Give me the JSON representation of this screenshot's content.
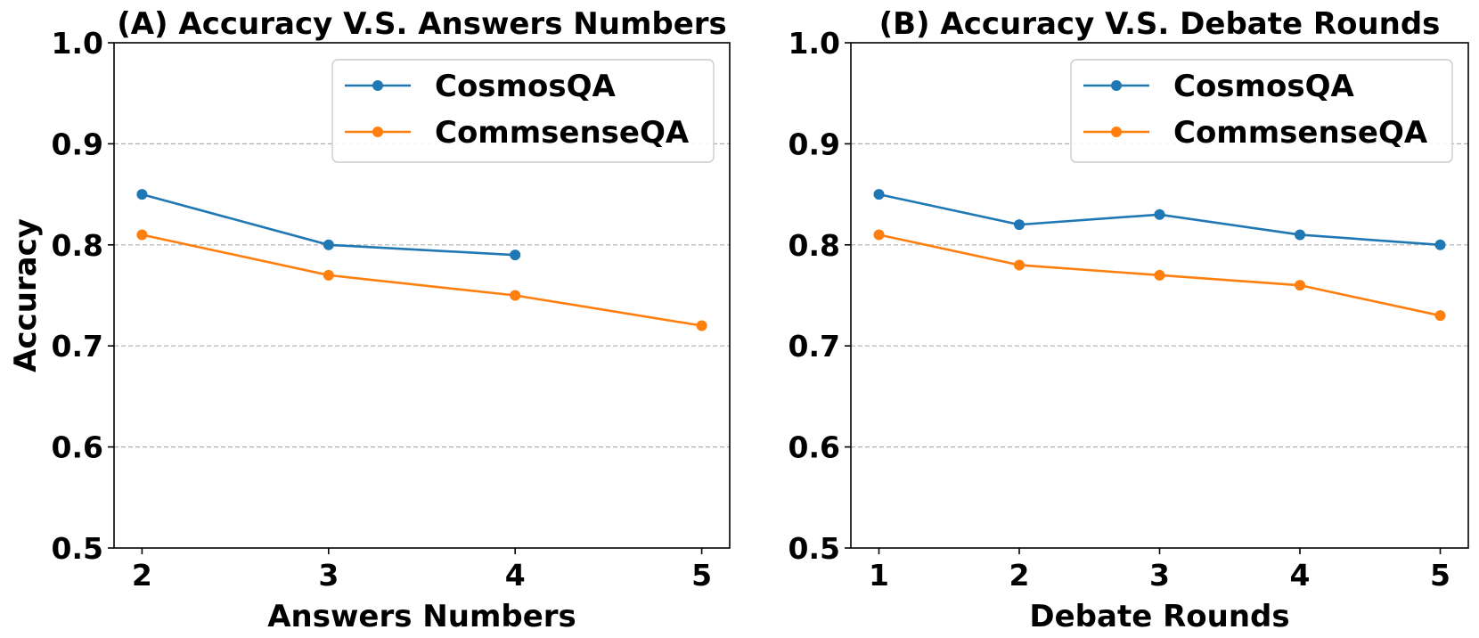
{
  "chart_data": [
    {
      "type": "line",
      "title": "(A) Accuracy V.S. Answers Numbers",
      "xlabel": "Answers Numbers",
      "ylabel": "Accuracy",
      "ylim": [
        0.5,
        1.0
      ],
      "xlim": [
        1.85,
        5.15
      ],
      "xticks": [
        2,
        3,
        4,
        5
      ],
      "yticks": [
        0.5,
        0.6,
        0.7,
        0.8,
        0.9,
        1.0
      ],
      "ytick_labels": [
        "0.5",
        "0.6",
        "0.7",
        "0.8",
        "0.9",
        "1.0"
      ],
      "grid": "horizontal dashed",
      "legend_position": "upper right",
      "series": [
        {
          "name": "CosmosQA",
          "color": "#1f77b4",
          "x": [
            2,
            3,
            4
          ],
          "values": [
            0.85,
            0.8,
            0.79
          ]
        },
        {
          "name": "CommsenseQA",
          "color": "#ff7f0e",
          "x": [
            2,
            3,
            4,
            5
          ],
          "values": [
            0.81,
            0.77,
            0.75,
            0.72
          ]
        }
      ]
    },
    {
      "type": "line",
      "title": "(B) Accuracy V.S. Debate Rounds",
      "xlabel": "Debate Rounds",
      "ylabel": "",
      "ylim": [
        0.5,
        1.0
      ],
      "xlim": [
        0.8,
        5.2
      ],
      "xticks": [
        1,
        2,
        3,
        4,
        5
      ],
      "yticks": [
        0.5,
        0.6,
        0.7,
        0.8,
        0.9,
        1.0
      ],
      "ytick_labels": [
        "0.5",
        "0.6",
        "0.7",
        "0.8",
        "0.9",
        "1.0"
      ],
      "grid": "horizontal dashed",
      "legend_position": "upper right",
      "series": [
        {
          "name": "CosmosQA",
          "color": "#1f77b4",
          "x": [
            1,
            2,
            3,
            4,
            5
          ],
          "values": [
            0.85,
            0.82,
            0.83,
            0.81,
            0.8
          ]
        },
        {
          "name": "CommsenseQA",
          "color": "#ff7f0e",
          "x": [
            1,
            2,
            3,
            4,
            5
          ],
          "values": [
            0.81,
            0.78,
            0.77,
            0.76,
            0.73
          ]
        }
      ]
    }
  ]
}
